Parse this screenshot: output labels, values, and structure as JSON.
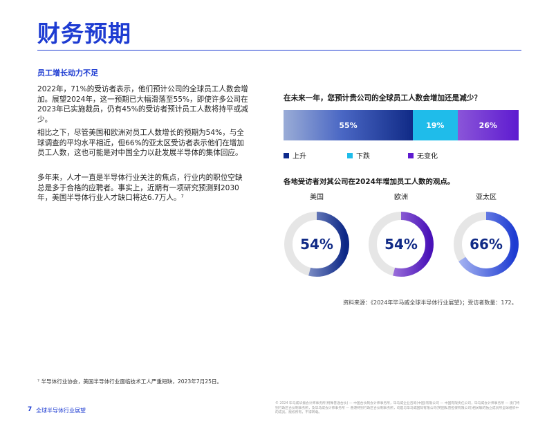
{
  "page": {
    "title": "财务预期",
    "section_heading": "员工增长动力不足",
    "paragraphs": [
      "2022年，71%的受访者表示，他们预计公司的全球员工人数会增加。展望2024年，这一预期已大幅滑落至55%，即使许多公司在2023年已实施裁员，仍有45%的受访者预计员工人数将持平或减少。",
      "相比之下，尽管美国和欧洲对员工人数增长的预期为54%，与全球调查的平均水平相近，但66%的亚太区受访者表示他们在增加员工人数，这也可能是对中国全力以赴发展半导体的集体回应。",
      "多年来，人才一直是半导体行业关注的焦点，行业内的职位空缺总是多于合格的应聘者。事实上，近期有一项研究预测到2030年，美国半导体行业人才缺口将达6.7万人。⁷"
    ],
    "footnote": "⁷ 半导体行业协会，美国半导体行业面临技术工人严重短缺，2023年7月25日。",
    "footer_page_no": "7",
    "footer_title": "全球半导体行业展望",
    "footer_legal": "© 2024 毕马威华振会计师事务所(特殊普通合伙) — 中国合伙制会计师事务所，毕马威企业咨询(中国)有限公司 — 中国有限责任公司，毕马威会计师事务所 — 澳门特别行政区合伙制事务所，及毕马威会计师事务所 — 香港特别行政区合伙制事务所，均是与毕马威国际有限公司(英国私营担保有限公司)相关联的独立成员所全球组织中的成员。版权所有，不得转载。"
  },
  "chart_data": [
    {
      "type": "bar",
      "title": "在未来一年，您预计贵公司的全球员工人数会增加还是减少？",
      "series": [
        {
          "name": "上升",
          "values": [
            55
          ],
          "label": "55%",
          "color": "#0e2a8c"
        },
        {
          "name": "下跌",
          "values": [
            19
          ],
          "label": "19%",
          "color": "#1fbcea"
        },
        {
          "name": "无变化",
          "values": [
            26
          ],
          "label": "26%",
          "color": "#5e1bd0"
        }
      ],
      "legend": "bottom-left"
    },
    {
      "type": "pie",
      "title": "各地受访者对其公司在2024年增加员工人数的观点。",
      "regions": [
        {
          "name": "美国",
          "value": 54,
          "label": "54%",
          "color_from": "#b8c4e6",
          "color_to": "#0c2786"
        },
        {
          "name": "欧洲",
          "value": 54,
          "label": "54%",
          "color_from": "#c8a4ee",
          "color_to": "#4a12b8"
        },
        {
          "name": "亚太区",
          "value": 66,
          "label": "66%",
          "color_from": "#a8b6f2",
          "color_to": "#1e3cd2"
        }
      ],
      "source": "资料来源：《2024年毕马威全球半导体行业展望》；受访者数量：172。"
    }
  ]
}
